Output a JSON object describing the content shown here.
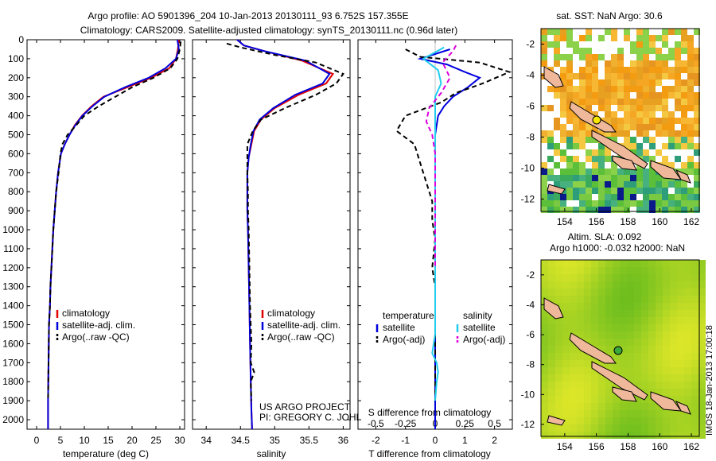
{
  "header": {
    "line1": "Argo profile: AO 5901396_204 10-Jan-2013 20130111_93 6.752S 157.355E",
    "line2": "Climatology: CARS2009. Satellite-adjusted climatology: synTS_20130111.nc (0.96d later)"
  },
  "credit": {
    "line1": "US ARGO PROJECT",
    "line2": "PI: GREGORY C. JOHNSON"
  },
  "stamp": "IMOS 18-Jan-2013 17:00:18",
  "chart_data": [
    {
      "type": "line",
      "id": "temperature",
      "xlabel": "temperature (deg C)",
      "xlim": [
        -2,
        31
      ],
      "xticks": [
        0,
        5,
        10,
        15,
        20,
        25,
        30
      ],
      "ylim": [
        0,
        2050
      ],
      "yticks": [
        0,
        100,
        200,
        300,
        400,
        500,
        600,
        700,
        800,
        900,
        1000,
        1100,
        1200,
        1300,
        1400,
        1500,
        1600,
        1700,
        1800,
        1900,
        2000
      ],
      "legend": [
        "climatology",
        "satellite-adj. clim.",
        "Argo(..raw -QC)"
      ],
      "legend_colors": [
        "#e00000",
        "#0000dd",
        "#000000"
      ],
      "series": [
        {
          "name": "climatology",
          "color": "#e00000",
          "dash": false,
          "x": [
            29.8,
            29.6,
            29.2,
            27.8,
            24,
            19,
            14,
            11.5,
            9.5,
            8,
            6.9,
            5.9,
            5.1,
            4.5,
            4.1,
            3.8,
            3.5,
            3.3,
            3.1,
            2.9,
            2.8,
            2.6,
            2.5,
            2.4,
            2.4
          ],
          "y": [
            0,
            50,
            100,
            150,
            200,
            250,
            300,
            350,
            400,
            450,
            500,
            550,
            600,
            700,
            800,
            900,
            1000,
            1100,
            1200,
            1300,
            1400,
            1500,
            1700,
            1900,
            2050
          ]
        },
        {
          "name": "satellite-adj. clim.",
          "color": "#0000dd",
          "dash": false,
          "x": [
            29.5,
            29.8,
            29.2,
            27,
            23.5,
            18.5,
            14.2,
            11.7,
            9.6,
            8.1,
            6.9,
            5.9,
            5.1,
            4.5,
            4.1,
            3.8,
            3.5,
            3.3,
            3.1,
            2.9,
            2.8,
            2.6,
            2.5,
            2.4,
            2.4
          ],
          "y": [
            0,
            50,
            100,
            150,
            200,
            250,
            300,
            350,
            400,
            450,
            500,
            550,
            600,
            700,
            800,
            900,
            1000,
            1100,
            1200,
            1300,
            1400,
            1500,
            1700,
            1900,
            2050
          ]
        },
        {
          "name": "Argo(..raw -QC)",
          "color": "#000000",
          "dash": true,
          "x": [
            30.2,
            30,
            29.5,
            28,
            24.5,
            20,
            16.5,
            13,
            10,
            8.3,
            6.5,
            5.4,
            5,
            4.6,
            4.1,
            3.8,
            3.5,
            3.3,
            3.1,
            2.9,
            2.8,
            2.6,
            2.5,
            2.4
          ],
          "y": [
            10,
            50,
            100,
            150,
            200,
            250,
            300,
            350,
            400,
            450,
            500,
            550,
            600,
            700,
            800,
            900,
            1000,
            1100,
            1200,
            1300,
            1400,
            1500,
            1700,
            1900
          ]
        }
      ]
    },
    {
      "type": "line",
      "id": "salinity",
      "xlabel": "salinity",
      "xlim": [
        33.8,
        36.1
      ],
      "xticks": [
        34,
        34.5,
        35,
        35.5,
        36
      ],
      "ylim": [
        0,
        2050
      ],
      "legend": [
        "climatology",
        "satellite-adj. clim.",
        "Argo(..raw -QC)"
      ],
      "legend_colors": [
        "#e00000",
        "#0000dd",
        "#000000"
      ],
      "series": [
        {
          "name": "climatology",
          "color": "#e00000",
          "dash": false,
          "x": [
            34.45,
            34.55,
            34.85,
            35.4,
            35.85,
            35.75,
            35.35,
            35,
            34.8,
            34.7,
            34.66,
            34.62,
            34.6,
            34.6,
            34.6,
            34.61,
            34.62,
            34.63,
            34.64,
            34.65,
            34.66,
            34.67
          ],
          "y": [
            0,
            30,
            60,
            110,
            180,
            230,
            290,
            360,
            420,
            480,
            550,
            620,
            700,
            800,
            900,
            1000,
            1200,
            1400,
            1600,
            1800,
            1950,
            2050
          ]
        },
        {
          "name": "satellite-adj. clim.",
          "color": "#0000dd",
          "dash": false,
          "x": [
            34.45,
            34.55,
            34.85,
            35.45,
            35.8,
            35.7,
            35.3,
            34.98,
            34.78,
            34.69,
            34.65,
            34.62,
            34.6,
            34.6,
            34.6,
            34.61,
            34.62,
            34.63,
            34.64,
            34.65,
            34.66,
            34.67
          ],
          "y": [
            0,
            30,
            60,
            110,
            180,
            230,
            290,
            360,
            420,
            480,
            550,
            620,
            700,
            800,
            900,
            1000,
            1200,
            1400,
            1600,
            1800,
            1950,
            2050
          ]
        },
        {
          "name": "Argo(..raw -QC)",
          "color": "#000000",
          "dash": true,
          "x": [
            34.3,
            34.5,
            35,
            35.6,
            36,
            35.9,
            35.6,
            35.15,
            34.8,
            34.68,
            34.6,
            34.6,
            34.6,
            34.61,
            34.61,
            34.62,
            34.63,
            34.64,
            34.66,
            34.65,
            34.7,
            34.65,
            34.66
          ],
          "y": [
            20,
            40,
            80,
            120,
            180,
            230,
            290,
            360,
            420,
            480,
            550,
            620,
            700,
            800,
            900,
            1000,
            1200,
            1400,
            1600,
            1700,
            1750,
            1800,
            1900
          ]
        }
      ]
    },
    {
      "type": "line",
      "id": "difference",
      "xlabel": "T difference from climatology",
      "xlabel_top": "S difference from climatology",
      "xlim": [
        -2.6,
        2.6
      ],
      "xticks": [
        -2,
        -1,
        0,
        1,
        2
      ],
      "xticks_top": [
        -0.5,
        -0.25,
        0,
        0.25,
        0.5
      ],
      "xticks_top_labels": [
        "-0.5",
        "-0.25",
        "0",
        "0.25",
        "0.5"
      ],
      "ylim": [
        0,
        2050
      ],
      "legend_left": {
        "title": "temperature",
        "items": [
          "satellite",
          "Argo(-adj)"
        ],
        "colors": [
          "#0000dd",
          "#000000"
        ]
      },
      "legend_right": {
        "title": "salinity",
        "items": [
          "satellite",
          "Argo(-adj)"
        ],
        "colors": [
          "#22ccee",
          "#dd00dd"
        ]
      },
      "series": [
        {
          "name": "temperature satellite",
          "color": "#0000dd",
          "dash": false,
          "x": [
            0.5,
            -0.5,
            0.4,
            1,
            1.5,
            1.1,
            0.6,
            0.3,
            0.1,
            0,
            0,
            0,
            0,
            0,
            0,
            0,
            0,
            0,
            0,
            0,
            0
          ],
          "y": [
            50,
            100,
            130,
            170,
            200,
            250,
            300,
            350,
            400,
            500,
            600,
            800,
            1000,
            1200,
            1400,
            1500,
            1700,
            1750,
            1800,
            1900,
            2050
          ]
        },
        {
          "name": "temperature Argo(-adj)",
          "color": "#000000",
          "dash": true,
          "x": [
            -1,
            -0.5,
            1.5,
            2.5,
            1.6,
            0.7,
            0.2,
            -1,
            -1.3,
            -0.7,
            -0.5,
            -0.3,
            -0.1,
            -0.1,
            0,
            -0.1,
            0,
            0,
            0,
            0,
            0,
            0
          ],
          "y": [
            50,
            90,
            120,
            170,
            230,
            280,
            330,
            400,
            480,
            550,
            650,
            750,
            850,
            950,
            1050,
            1200,
            1300,
            1400,
            1500,
            1700,
            1800,
            1900
          ]
        },
        {
          "name": "salinity satellite",
          "color": "#22ccee",
          "dash": false,
          "x": [
            0.3,
            -0.4,
            0.1,
            0.2,
            0,
            0,
            0,
            0,
            0,
            0,
            0,
            0,
            0,
            0,
            -0.05,
            -0.1,
            0.05,
            0.1,
            0.05,
            0
          ],
          "y": [
            40,
            100,
            160,
            230,
            300,
            400,
            500,
            600,
            800,
            1000,
            1200,
            1400,
            1500,
            1550,
            1600,
            1650,
            1700,
            1750,
            1800,
            1900
          ]
        },
        {
          "name": "salinity Argo(-adj)",
          "color": "#dd00dd",
          "dash": true,
          "x": [
            0.7,
            0.6,
            0.25,
            0.5,
            0.2,
            -0.2,
            -0.3,
            -0.1,
            0,
            0,
            0,
            0
          ],
          "y": [
            30,
            60,
            120,
            200,
            280,
            360,
            430,
            500,
            600,
            800,
            1000,
            1200
          ]
        }
      ]
    },
    {
      "type": "heatmap",
      "id": "sst-map",
      "title": "sat. SST: NaN Argo: 30.6",
      "xticks": [
        154,
        156,
        158,
        160,
        162
      ],
      "yticks": [
        -2,
        -4,
        -6,
        -8,
        -10,
        -12
      ],
      "xlim": [
        152.5,
        162.5
      ],
      "ylim": [
        -12.8,
        -1
      ]
    },
    {
      "type": "heatmap",
      "id": "sla-map",
      "title_line1": "Altim. SLA: 0.092",
      "title_line2": "Argo h1000: -0.032 h2000: NaN",
      "xticks": [
        154,
        156,
        158,
        160,
        162
      ],
      "yticks": [
        -2,
        -4,
        -6,
        -8,
        -10,
        -12
      ],
      "xlim": [
        152.5,
        162.5
      ],
      "ylim": [
        -12.8,
        -1
      ]
    }
  ]
}
